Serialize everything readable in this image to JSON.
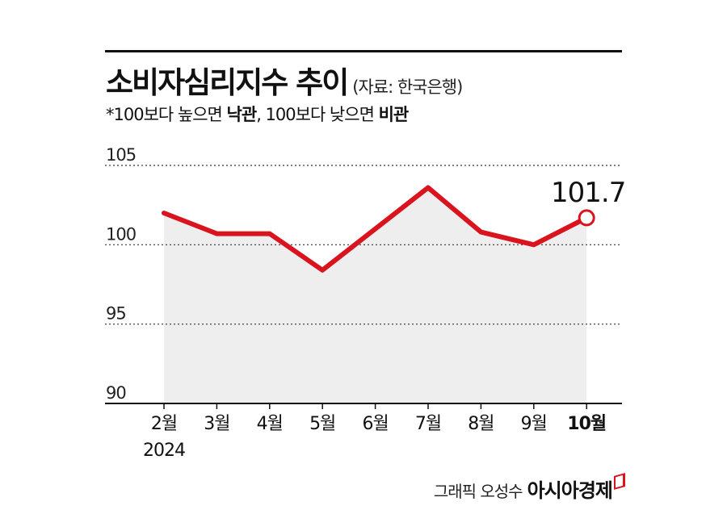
{
  "header": {
    "title": "소비자심리지수 추이",
    "source": "(자료: 한국은행)",
    "note": {
      "prefix": "*100보다 높으면 ",
      "optimism": "낙관",
      "middle": ", 100보다 낮으면 ",
      "pessimism": "비관"
    }
  },
  "credit": {
    "text": "그래픽 오성수",
    "brand": "아시아경제"
  },
  "colors": {
    "line": "#d9141e",
    "area": "#eeeeee",
    "text": "#111111"
  },
  "chart_data": {
    "type": "area",
    "categories": [
      "2월",
      "3월",
      "4월",
      "5월",
      "6월",
      "7월",
      "8월",
      "9월",
      "10월"
    ],
    "year_label": "2024",
    "series": [
      {
        "values": [
          102.0,
          100.7,
          100.7,
          98.4,
          101.0,
          103.6,
          100.8,
          100.0,
          101.7
        ]
      }
    ],
    "ylim": [
      90,
      105
    ],
    "yticks": [
      "90",
      "95",
      "100",
      "105"
    ],
    "highlight": {
      "index": 8,
      "label": "101.7"
    },
    "grid": true
  }
}
